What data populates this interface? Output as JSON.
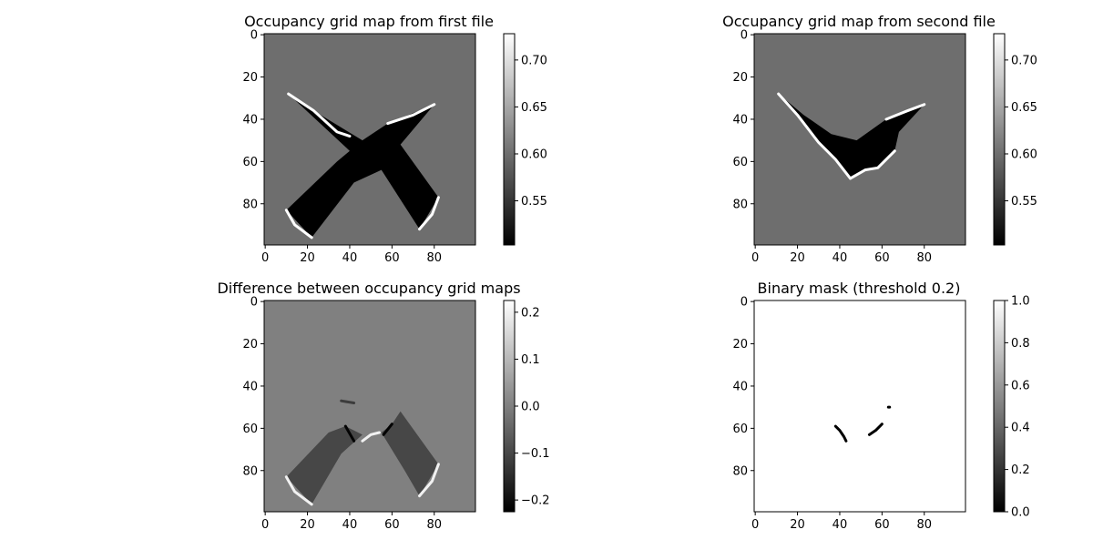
{
  "figure": {
    "background": "#ffffff"
  },
  "chart_data": [
    {
      "type": "heatmap",
      "id": "map1",
      "title": "Occupancy grid map from first file",
      "xticks": [
        0,
        20,
        40,
        60,
        80
      ],
      "yticks": [
        0,
        20,
        40,
        60,
        80
      ],
      "xlim": [
        0,
        99
      ],
      "ylim": [
        99,
        0
      ],
      "colormap": "gray",
      "clim": [
        0.503,
        0.728
      ],
      "colorbar_ticks": [
        "0.55",
        "0.60",
        "0.65",
        "0.70"
      ],
      "colorbar_tick_values": [
        0.55,
        0.6,
        0.65,
        0.7
      ],
      "background_value": 0.6,
      "regions": [
        {
          "kind": "free",
          "value": 0.503,
          "polygon": [
            [
              11,
              28
            ],
            [
              23,
              36
            ],
            [
              46,
              50
            ],
            [
              58,
              42
            ],
            [
              80,
              33
            ],
            [
              64,
              52
            ],
            [
              82,
              77
            ],
            [
              73,
              92
            ],
            [
              55,
              64
            ],
            [
              42,
              70
            ],
            [
              22,
              96
            ],
            [
              10,
              83
            ],
            [
              34,
              60
            ],
            [
              40,
              55
            ]
          ]
        },
        {
          "kind": "occupied-edge",
          "value": 0.728,
          "polyline": [
            [
              11,
              28
            ],
            [
              23,
              36
            ],
            [
              34,
              46
            ],
            [
              40,
              48
            ]
          ]
        },
        {
          "kind": "occupied-edge",
          "value": 0.728,
          "polyline": [
            [
              58,
              42
            ],
            [
              70,
              38
            ],
            [
              80,
              33
            ]
          ]
        },
        {
          "kind": "occupied-edge",
          "value": 0.728,
          "polyline": [
            [
              10,
              83
            ],
            [
              14,
              90
            ],
            [
              22,
              96
            ]
          ]
        },
        {
          "kind": "occupied-edge",
          "value": 0.728,
          "polyline": [
            [
              73,
              92
            ],
            [
              79,
              85
            ],
            [
              82,
              77
            ]
          ]
        }
      ]
    },
    {
      "type": "heatmap",
      "id": "map2",
      "title": "Occupancy grid map from  second file",
      "xticks": [
        0,
        20,
        40,
        60,
        80
      ],
      "yticks": [
        0,
        20,
        40,
        60,
        80
      ],
      "xlim": [
        0,
        99
      ],
      "ylim": [
        99,
        0
      ],
      "colormap": "gray",
      "clim": [
        0.503,
        0.728
      ],
      "colorbar_ticks": [
        "0.55",
        "0.60",
        "0.65",
        "0.70"
      ],
      "colorbar_tick_values": [
        0.55,
        0.6,
        0.65,
        0.7
      ],
      "background_value": 0.6,
      "regions": [
        {
          "kind": "free",
          "value": 0.503,
          "polygon": [
            [
              11,
              28
            ],
            [
              23,
              38
            ],
            [
              36,
              47
            ],
            [
              48,
              50
            ],
            [
              62,
              40
            ],
            [
              80,
              33
            ],
            [
              68,
              46
            ],
            [
              66,
              55
            ],
            [
              58,
              63
            ],
            [
              52,
              64
            ],
            [
              45,
              68
            ],
            [
              38,
              59
            ],
            [
              30,
              51
            ]
          ]
        },
        {
          "kind": "occupied-edge",
          "value": 0.728,
          "polyline": [
            [
              11,
              28
            ],
            [
              20,
              38
            ],
            [
              30,
              51
            ],
            [
              38,
              59
            ],
            [
              45,
              68
            ]
          ]
        },
        {
          "kind": "occupied-edge",
          "value": 0.728,
          "polyline": [
            [
              45,
              68
            ],
            [
              52,
              64
            ],
            [
              58,
              63
            ],
            [
              66,
              55
            ]
          ]
        },
        {
          "kind": "occupied-edge",
          "value": 0.728,
          "polyline": [
            [
              62,
              40
            ],
            [
              72,
              36
            ],
            [
              80,
              33
            ]
          ]
        }
      ]
    },
    {
      "type": "heatmap",
      "id": "diff",
      "title": "Difference between occupancy grid maps",
      "xticks": [
        0,
        20,
        40,
        60,
        80
      ],
      "yticks": [
        0,
        20,
        40,
        60,
        80
      ],
      "xlim": [
        0,
        99
      ],
      "ylim": [
        99,
        0
      ],
      "colormap": "gray",
      "clim": [
        -0.225,
        0.225
      ],
      "colorbar_ticks": [
        "−0.2",
        "−0.1",
        "0.0",
        "0.1",
        "0.2"
      ],
      "colorbar_tick_values": [
        -0.2,
        -0.1,
        0.0,
        0.1,
        0.2
      ],
      "background_value": 0.0,
      "regions": [
        {
          "kind": "negative",
          "value": -0.1,
          "polygon": [
            [
              38,
              59
            ],
            [
              46,
              63
            ],
            [
              36,
              72
            ],
            [
              22,
              96
            ],
            [
              10,
              83
            ],
            [
              30,
              62
            ]
          ]
        },
        {
          "kind": "negative",
          "value": -0.1,
          "polygon": [
            [
              55,
              62
            ],
            [
              60,
              58
            ],
            [
              64,
              52
            ],
            [
              82,
              77
            ],
            [
              73,
              92
            ],
            [
              66,
              80
            ]
          ]
        },
        {
          "kind": "positive-edge",
          "value": 0.2,
          "polyline": [
            [
              10,
              83
            ],
            [
              14,
              90
            ],
            [
              22,
              96
            ]
          ]
        },
        {
          "kind": "positive-edge",
          "value": 0.2,
          "polyline": [
            [
              73,
              92
            ],
            [
              79,
              85
            ],
            [
              82,
              77
            ]
          ]
        },
        {
          "kind": "positive-edge",
          "value": 0.2,
          "polyline": [
            [
              46,
              66
            ],
            [
              50,
              63
            ],
            [
              54,
              62
            ]
          ]
        },
        {
          "kind": "strong-negative",
          "value": -0.22,
          "polyline": [
            [
              38,
              59
            ],
            [
              42,
              66
            ]
          ]
        },
        {
          "kind": "strong-negative",
          "value": -0.22,
          "polyline": [
            [
              56,
              63
            ],
            [
              60,
              58
            ]
          ]
        },
        {
          "kind": "negative-edge",
          "value": -0.12,
          "polyline": [
            [
              36,
              47
            ],
            [
              42,
              48
            ]
          ]
        }
      ]
    },
    {
      "type": "heatmap",
      "id": "mask",
      "title": "Binary mask (threshold 0.2)",
      "xticks": [
        0,
        20,
        40,
        60,
        80
      ],
      "yticks": [
        0,
        20,
        40,
        60,
        80
      ],
      "xlim": [
        0,
        99
      ],
      "ylim": [
        99,
        0
      ],
      "colormap": "gray",
      "clim": [
        0.0,
        1.0
      ],
      "colorbar_ticks": [
        "0.0",
        "0.2",
        "0.4",
        "0.6",
        "0.8",
        "1.0"
      ],
      "colorbar_tick_values": [
        0.0,
        0.2,
        0.4,
        0.6,
        0.8,
        1.0
      ],
      "background_value": 1.0,
      "regions": [
        {
          "kind": "masked",
          "value": 0.0,
          "polyline": [
            [
              38,
              59
            ],
            [
              40,
              61
            ],
            [
              42,
              64
            ],
            [
              43,
              66
            ]
          ]
        },
        {
          "kind": "masked",
          "value": 0.0,
          "polyline": [
            [
              54,
              63
            ],
            [
              57,
              61
            ],
            [
              59,
              59
            ],
            [
              60,
              58
            ]
          ]
        },
        {
          "kind": "masked-dot",
          "value": 0.0,
          "polyline": [
            [
              63,
              50
            ],
            [
              63.6,
              50
            ]
          ]
        }
      ]
    }
  ]
}
